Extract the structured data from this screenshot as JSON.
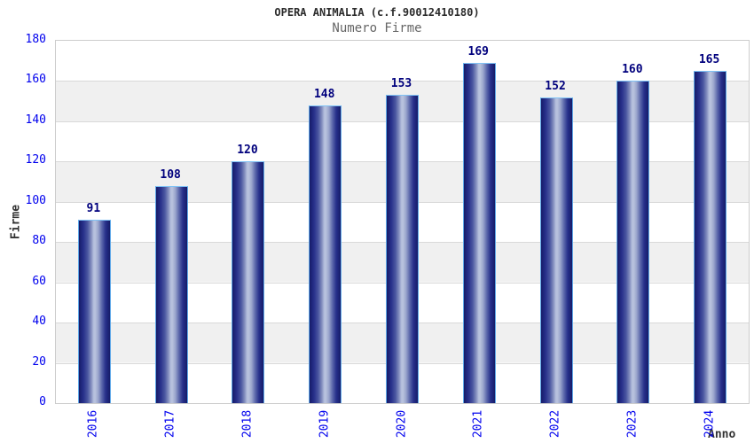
{
  "chart_data": {
    "type": "bar",
    "title": "OPERA ANIMALIA (c.f.90012410180)",
    "subtitle": "Numero Firme",
    "categories": [
      "2016",
      "2017",
      "2018",
      "2019",
      "2020",
      "2021",
      "2022",
      "2023",
      "2024"
    ],
    "values": [
      91,
      108,
      120,
      148,
      153,
      169,
      152,
      160,
      165
    ],
    "xlabel": "Anno",
    "ylabel": "Firme",
    "ylim": [
      0,
      180
    ],
    "ytick_step": 20,
    "yticks": [
      0,
      20,
      40,
      60,
      80,
      100,
      120,
      140,
      160,
      180
    ],
    "grid": "horizontal-bands",
    "legend": "none",
    "colors": {
      "tick_label": "#0000ee",
      "value_label": "#00007d",
      "bar_dark": "#161b66",
      "bar_light": "#b9c3de",
      "bar_border": "#5fa8e8",
      "band_gray": "#f0f0f0",
      "grid_line": "#d9d9d9",
      "plot_border": "#cccccc",
      "title_color": "#2b2b2b",
      "subtitle_color": "#666666",
      "axis_title_color": "#333333"
    }
  }
}
